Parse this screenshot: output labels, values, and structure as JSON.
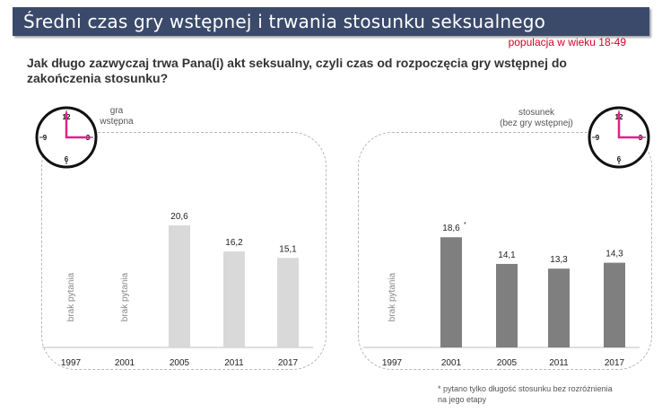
{
  "header": {
    "title": "Średni czas gry wstępnej i trwania stosunku seksualnego",
    "population": "populacja w wieku 18-49",
    "question": "Jak długo zazwyczaj trwa Pana(i) akt seksualny, czyli czas od rozpoczęcia gry wstępnej do zakończenia stosunku?"
  },
  "clock_numbers": {
    "twelve": "12",
    "three": "3",
    "six": "6",
    "nine": "9"
  },
  "colors": {
    "title_bg": "#3b4a6b",
    "accent": "#e0218a",
    "bar_light": "#d9d9d9",
    "bar_dark": "#7f7f7f"
  },
  "chart_data": [
    {
      "type": "bar",
      "title": "gra wstępna",
      "caption_lines": [
        "gra",
        "wstępna"
      ],
      "categories": [
        "1997",
        "2001",
        "2005",
        "2011",
        "2017"
      ],
      "values": [
        null,
        null,
        20.6,
        16.2,
        15.1
      ],
      "value_labels": [
        "",
        "",
        "20,6",
        "16,2",
        "15,1"
      ],
      "missing_labels": [
        "brak pytania",
        "brak pytania",
        "",
        "",
        ""
      ],
      "ylim": [
        0,
        25
      ],
      "color": "#d9d9d9"
    },
    {
      "type": "bar",
      "title": "stosunek (bez gry wstępnej)",
      "caption_lines": [
        "stosunek",
        "(bez gry wstępnej)"
      ],
      "categories": [
        "1997",
        "2001",
        "2005",
        "2011",
        "2017"
      ],
      "values": [
        null,
        18.6,
        14.1,
        13.3,
        14.3
      ],
      "value_labels": [
        "",
        "18,6",
        "14,1",
        "13,3",
        "14,3"
      ],
      "label_marks": [
        "",
        "*",
        "",
        "",
        ""
      ],
      "missing_labels": [
        "brak pytania",
        "",
        "",
        "",
        ""
      ],
      "ylim": [
        0,
        25
      ],
      "color": "#7f7f7f"
    }
  ],
  "footnote": "* pytano tylko długość stosunku bez rozróżnienia na jego etapy"
}
